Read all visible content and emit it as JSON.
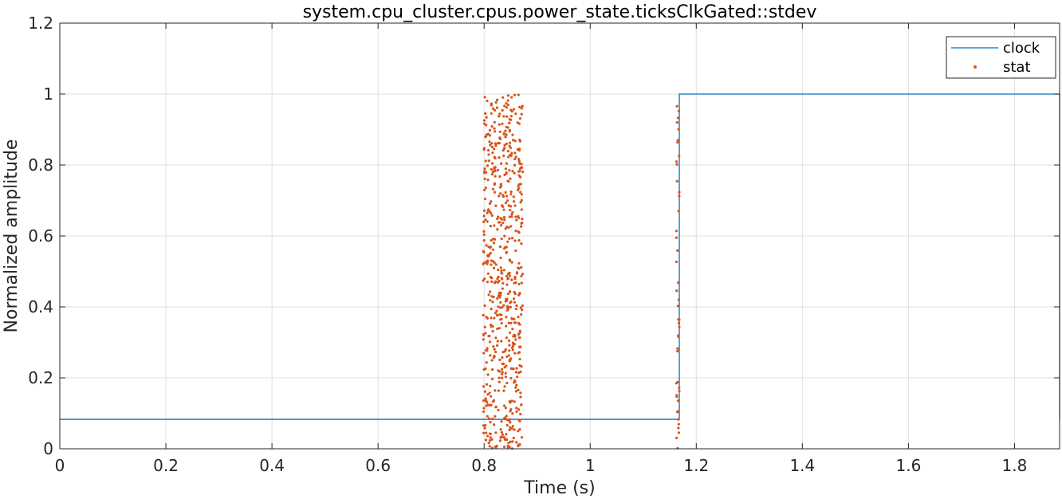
{
  "chart_data": {
    "type": "line",
    "title": "system.cpu_cluster.cpus.power_state.ticksClkGated::stdev",
    "xlabel": "Time (s)",
    "ylabel": "Normalized amplitude",
    "xlim": [
      0,
      1.885
    ],
    "ylim": [
      0,
      1.2
    ],
    "xticks": [
      0,
      0.2,
      0.4,
      0.6,
      0.8,
      1,
      1.2,
      1.4,
      1.6,
      1.8
    ],
    "xtick_labels": [
      "0",
      "0.2",
      "0.4",
      "0.6",
      "0.8",
      "1",
      "1.2",
      "1.4",
      "1.6",
      "1.8"
    ],
    "yticks": [
      0,
      0.2,
      0.4,
      0.6,
      0.8,
      1,
      1.2
    ],
    "ytick_labels": [
      "0",
      "0.2",
      "0.4",
      "0.6",
      "0.8",
      "1",
      "1.2"
    ],
    "grid": true,
    "legend_position": "top-right",
    "series": [
      {
        "name": "clock",
        "kind": "line",
        "color": "#0072BD",
        "x": [
          0,
          1.168,
          1.168,
          1.885,
          1.885
        ],
        "y": [
          0.083,
          0.083,
          1.0,
          1.0,
          0.083
        ]
      },
      {
        "name": "stat",
        "kind": "scatter",
        "color": "#D95319",
        "clusters": [
          {
            "x_range": [
              0.798,
              0.873
            ],
            "y_range": [
              0.0,
              1.0
            ],
            "count": 640
          },
          {
            "x_range": [
              1.162,
              1.168
            ],
            "y_range": [
              0.0,
              0.97
            ],
            "count": 45
          }
        ]
      }
    ]
  }
}
